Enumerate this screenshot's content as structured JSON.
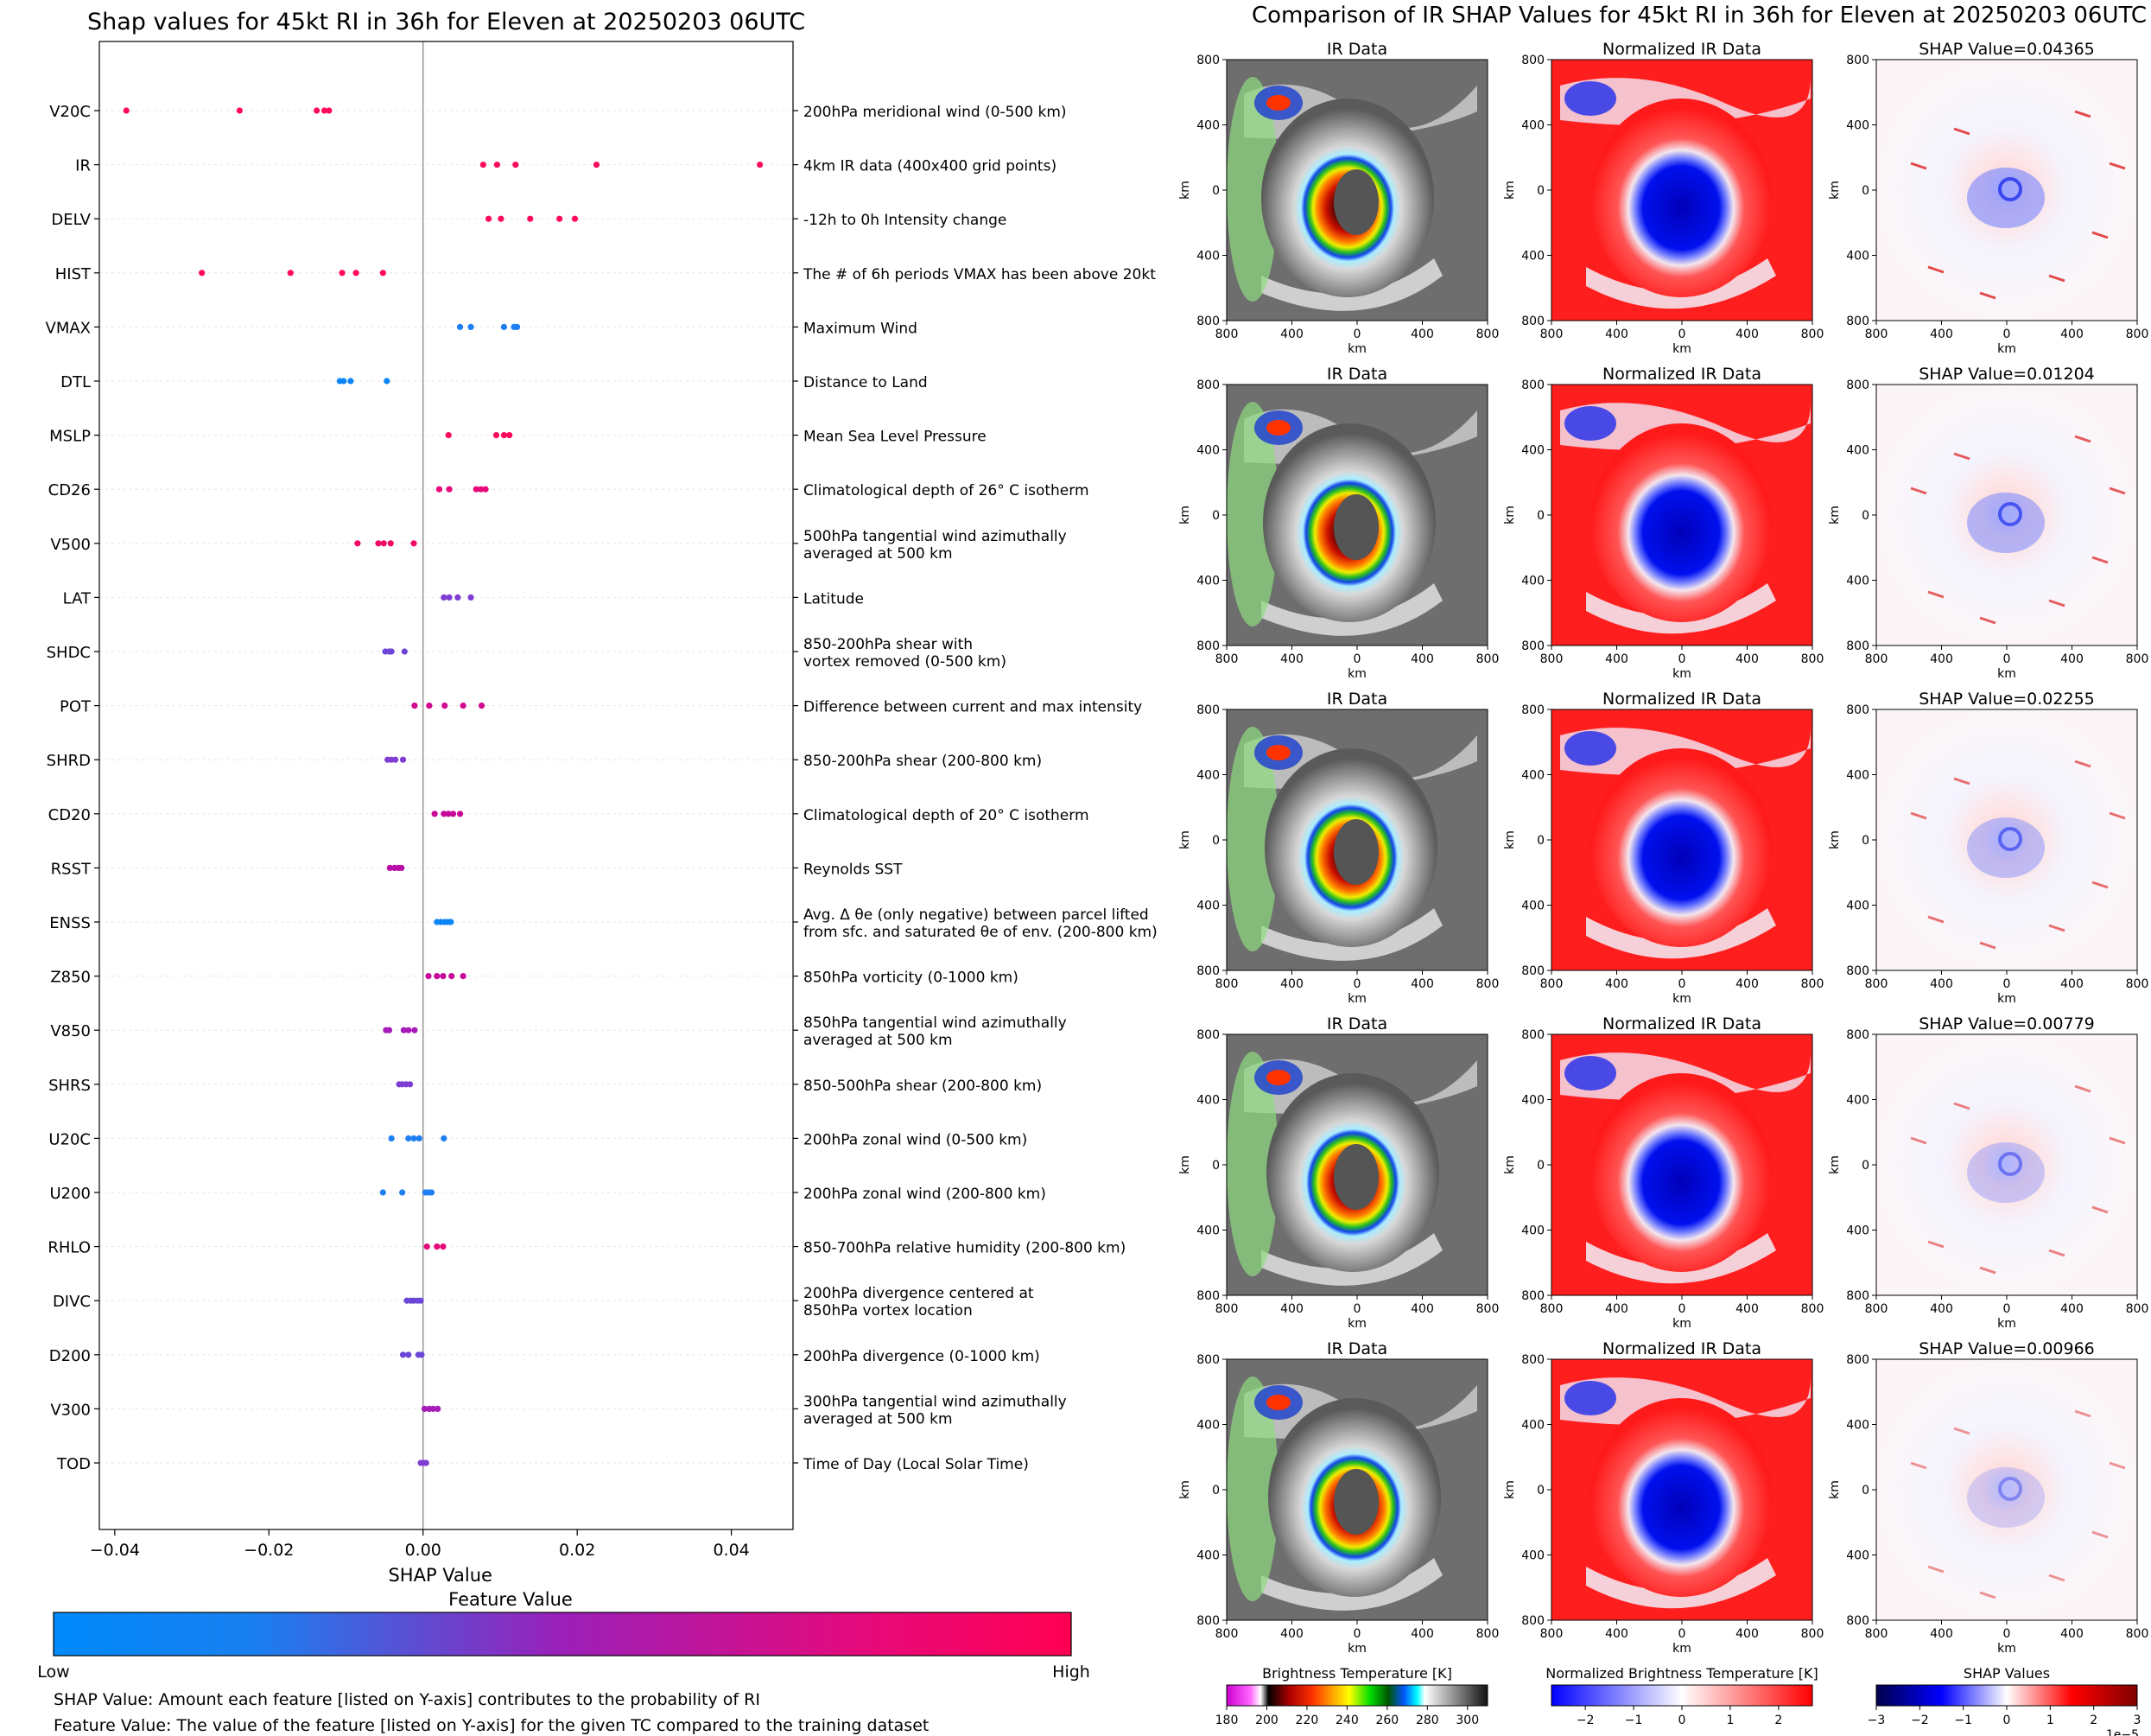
{
  "colors": {
    "low": "#008afb",
    "mid": "#7e3fd6",
    "high": "#ff0052",
    "zero_line": "#999999",
    "grid": "#e6e6e6"
  },
  "chart_data": [
    {
      "type": "scatter",
      "title": "Shap values for 45kt RI in 36h for Eleven at 20250203 06UTC",
      "xlabel": "SHAP Value",
      "xlim": [
        -0.042,
        0.048
      ],
      "xticks": [
        -0.04,
        -0.02,
        0.0,
        0.02,
        0.04
      ],
      "xtick_labels": [
        "−0.04",
        "−0.02",
        "0.00",
        "0.02",
        "0.04"
      ],
      "features": [
        {
          "name": "V20C",
          "desc": [
            "200hPa meridional wind (0-500 km)"
          ],
          "color": "#ff0a5b",
          "values": [
            -0.0385,
            -0.0238,
            -0.0138,
            -0.0128,
            -0.0122
          ]
        },
        {
          "name": "IR",
          "desc": [
            "4km IR data (400x400 grid points)"
          ],
          "color": "#ff0a5b",
          "values": [
            0.0078,
            0.0096,
            0.012,
            0.0225,
            0.0437
          ]
        },
        {
          "name": "DELV",
          "desc": [
            "-12h to 0h Intensity change"
          ],
          "color": "#ff0a5b",
          "values": [
            0.0085,
            0.0101,
            0.0139,
            0.0177,
            0.0197
          ]
        },
        {
          "name": "HIST",
          "desc": [
            "The # of 6h periods VMAX has been above 20kt"
          ],
          "color": "#ff0a5b",
          "values": [
            -0.0287,
            -0.0172,
            -0.0105,
            -0.0087,
            -0.0052
          ]
        },
        {
          "name": "VMAX",
          "desc": [
            "Maximum Wind"
          ],
          "color": "#1e7ff2",
          "values": [
            0.0048,
            0.0062,
            0.0105,
            0.0118,
            0.0122
          ]
        },
        {
          "name": "DTL",
          "desc": [
            "Distance to Land"
          ],
          "color": "#0d86f8",
          "values": [
            -0.0108,
            -0.0103,
            -0.0094,
            -0.0047
          ]
        },
        {
          "name": "MSLP",
          "desc": [
            "Mean Sea Level Pressure"
          ],
          "color": "#ff0a5b",
          "values": [
            0.0033,
            0.0095,
            0.0105,
            0.0112
          ]
        },
        {
          "name": "CD26",
          "desc": [
            "Climatological depth of 26° C isotherm"
          ],
          "color": "#e8087a",
          "values": [
            0.0021,
            0.0034,
            0.0069,
            0.0075,
            0.0081
          ]
        },
        {
          "name": "V500",
          "desc": [
            "500hPa tangential wind azimuthally",
            "averaged at 500 km"
          ],
          "color": "#f00a66",
          "values": [
            -0.0085,
            -0.0058,
            -0.0051,
            -0.0042,
            -0.0012
          ]
        },
        {
          "name": "LAT",
          "desc": [
            "Latitude"
          ],
          "color": "#7f3dd4",
          "values": [
            0.0027,
            0.0034,
            0.0045,
            0.0062
          ]
        },
        {
          "name": "SHDC",
          "desc": [
            "850-200hPa shear with",
            "vortex removed (0-500 km)"
          ],
          "color": "#6b46d6",
          "values": [
            -0.0049,
            -0.0044,
            -0.0041,
            -0.0024
          ]
        },
        {
          "name": "POT",
          "desc": [
            "Difference between current and max intensity"
          ],
          "color": "#d10890",
          "values": [
            -0.0011,
            0.0008,
            0.0028,
            0.0052,
            0.0076
          ]
        },
        {
          "name": "SHRD",
          "desc": [
            "850-200hPa shear (200-800 km)"
          ],
          "color": "#7f3dd4",
          "values": [
            -0.0046,
            -0.0041,
            -0.0036,
            -0.0026
          ]
        },
        {
          "name": "CD20",
          "desc": [
            "Climatological depth of 20° C isotherm"
          ],
          "color": "#c7099a",
          "values": [
            0.0015,
            0.0027,
            0.0033,
            0.0039,
            0.0048
          ]
        },
        {
          "name": "RSST",
          "desc": [
            "Reynolds SST"
          ],
          "color": "#b70ea8",
          "values": [
            -0.0043,
            -0.0037,
            -0.0032,
            -0.0028
          ]
        },
        {
          "name": "ENSS",
          "desc": [
            "Avg. Δ θe (only negative) between parcel lifted",
            "from sfc. and saturated θe of env. (200-800 km)"
          ],
          "color": "#0a84f6",
          "values": [
            0.0018,
            0.0023,
            0.0028,
            0.0032,
            0.0036
          ]
        },
        {
          "name": "Z850",
          "desc": [
            "850hPa vorticity (0-1000 km)"
          ],
          "color": "#c7099a",
          "values": [
            0.0007,
            0.0018,
            0.0026,
            0.0037,
            0.0052
          ]
        },
        {
          "name": "V850",
          "desc": [
            "850hPa tangential wind azimuthally",
            "averaged at 500 km"
          ],
          "color": "#a81ab7",
          "values": [
            -0.0048,
            -0.0044,
            -0.0025,
            -0.0019,
            -0.0011
          ]
        },
        {
          "name": "SHRS",
          "desc": [
            "850-500hPa shear (200-800 km)"
          ],
          "color": "#7f3dd4",
          "values": [
            -0.0031,
            -0.0027,
            -0.0022,
            -0.0017
          ]
        },
        {
          "name": "U20C",
          "desc": [
            "200hPa zonal wind (0-500 km)"
          ],
          "color": "#1e7ff2",
          "values": [
            -0.0041,
            -0.0019,
            -0.0012,
            -0.0005,
            0.0027
          ]
        },
        {
          "name": "U200",
          "desc": [
            "200hPa zonal wind (200-800 km)"
          ],
          "color": "#1e7ff2",
          "values": [
            -0.0052,
            -0.0027,
            0.0003,
            0.0007,
            0.0011
          ]
        },
        {
          "name": "RHLO",
          "desc": [
            "850-700hPa relative humidity (200-800 km)"
          ],
          "color": "#e8087a",
          "values": [
            0.0005,
            0.0018,
            0.0026
          ]
        },
        {
          "name": "DIVC",
          "desc": [
            "200hPa divergence centered at",
            "850hPa vortex location"
          ],
          "color": "#6b46d6",
          "values": [
            -0.0021,
            -0.0016,
            -0.0012,
            -0.0007,
            -0.0003
          ]
        },
        {
          "name": "D200",
          "desc": [
            "200hPa divergence (0-1000 km)"
          ],
          "color": "#6b46d6",
          "values": [
            -0.0026,
            -0.0019,
            -0.0006,
            -0.0002
          ]
        },
        {
          "name": "V300",
          "desc": [
            "300hPa tangential wind azimuthally",
            "averaged at 500 km"
          ],
          "color": "#a81ab7",
          "values": [
            0.0002,
            0.0008,
            0.0013,
            0.0019
          ]
        },
        {
          "name": "TOD",
          "desc": [
            "Time of Day (Local Solar Time)"
          ],
          "color": "#7f3dd4",
          "values": [
            -0.0003,
            0.0001,
            0.0004
          ]
        }
      ],
      "colorbar": {
        "title": "Feature Value",
        "low_label": "Low",
        "high_label": "High"
      }
    },
    {
      "type": "heatmap",
      "title": "Comparison of IR SHAP Values for 45kt RI in 36h for Eleven at 20250203 06UTC",
      "panel_titles": [
        "IR Data",
        "Normalized IR Data"
      ],
      "shap_titles": [
        "SHAP Value=0.04365",
        "SHAP Value=0.01204",
        "SHAP Value=0.02255",
        "SHAP Value=0.00779",
        "SHAP Value=0.00966"
      ],
      "axis_label": "km",
      "tick_labels": [
        "800",
        "400",
        "0",
        "400",
        "800"
      ],
      "colorbars": [
        {
          "title": "Brightness Temperature [K]",
          "ticks": [
            "180",
            "200",
            "220",
            "240",
            "260",
            "280",
            "300"
          ],
          "range": [
            180,
            310
          ]
        },
        {
          "title": "Normalized Brightness Temperature [K]",
          "ticks": [
            "−2",
            "−1",
            "0",
            "1",
            "2"
          ],
          "range": [
            -2.7,
            2.7
          ]
        },
        {
          "title": "SHAP Values",
          "ticks": [
            "−3",
            "−2",
            "−1",
            "0",
            "1",
            "2",
            "3"
          ],
          "range": [
            -3,
            3
          ],
          "exponent": "1e−5"
        }
      ]
    }
  ],
  "notes": {
    "line1": "SHAP Value: Amount each feature [listed on Y-axis] contributes to the probability of RI",
    "line2": "Feature Value: The value of the feature [listed on Y-axis] for the given TC compared to the training dataset"
  }
}
